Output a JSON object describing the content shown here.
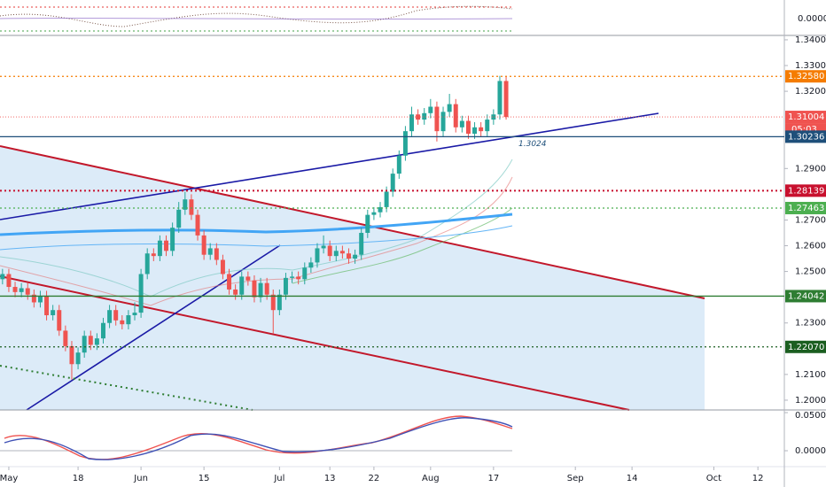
{
  "chart_data": {
    "type": "candlestick",
    "up_color": "#26a69a",
    "down_color": "#ef5350",
    "open": [
      1.247,
      1.249,
      1.244,
      1.242,
      1.2435,
      1.241,
      1.238,
      1.2405,
      1.233,
      1.235,
      1.227,
      1.221,
      1.214,
      1.2185,
      1.225,
      1.2215,
      1.224,
      1.23,
      1.235,
      1.231,
      1.2295,
      1.233,
      1.234,
      1.249,
      1.257,
      1.256,
      1.262,
      1.258,
      1.267,
      1.274,
      1.278,
      1.272,
      1.264,
      1.2565,
      1.259,
      1.2545,
      1.249,
      1.243,
      1.241,
      1.248,
      1.2465,
      1.24,
      1.2455,
      1.241,
      1.235,
      1.241,
      1.2475,
      1.248,
      1.247,
      1.2515,
      1.2535,
      1.259,
      1.26,
      1.256,
      1.258,
      1.257,
      1.255,
      1.2565,
      1.265,
      1.272,
      1.273,
      1.275,
      1.281,
      1.288,
      1.295,
      1.3045,
      1.311,
      1.309,
      1.3115,
      1.314,
      1.3045,
      1.312,
      1.315,
      1.306,
      1.3085,
      1.3035,
      1.306,
      1.3045,
      1.309,
      1.311,
      1.324
    ],
    "high": [
      1.251,
      1.251,
      1.246,
      1.2455,
      1.2455,
      1.243,
      1.2425,
      1.2425,
      1.237,
      1.237,
      1.229,
      1.223,
      1.2205,
      1.227,
      1.227,
      1.226,
      1.232,
      1.237,
      1.237,
      1.233,
      1.235,
      1.238,
      1.251,
      1.259,
      1.259,
      1.264,
      1.264,
      1.269,
      1.277,
      1.281,
      1.28,
      1.274,
      1.266,
      1.261,
      1.261,
      1.2565,
      1.251,
      1.245,
      1.25,
      1.25,
      1.2485,
      1.2475,
      1.2475,
      1.243,
      1.243,
      1.2495,
      1.25,
      1.25,
      1.2535,
      1.2555,
      1.261,
      1.264,
      1.262,
      1.26,
      1.26,
      1.259,
      1.2585,
      1.267,
      1.274,
      1.275,
      1.277,
      1.283,
      1.29,
      1.297,
      1.3065,
      1.314,
      1.313,
      1.3135,
      1.317,
      1.316,
      1.314,
      1.319,
      1.317,
      1.3105,
      1.3105,
      1.308,
      1.308,
      1.311,
      1.313,
      1.326,
      1.3258
    ],
    "low": [
      1.245,
      1.242,
      1.24,
      1.24,
      1.239,
      1.236,
      1.236,
      1.231,
      1.231,
      1.225,
      1.219,
      1.208,
      1.212,
      1.2165,
      1.2195,
      1.2195,
      1.222,
      1.228,
      1.229,
      1.2275,
      1.2275,
      1.231,
      1.232,
      1.247,
      1.254,
      1.254,
      1.256,
      1.256,
      1.265,
      1.272,
      1.27,
      1.262,
      1.2545,
      1.2545,
      1.2525,
      1.247,
      1.241,
      1.239,
      1.239,
      1.2445,
      1.238,
      1.238,
      1.239,
      1.226,
      1.233,
      1.239,
      1.2455,
      1.245,
      1.245,
      1.2495,
      1.2515,
      1.257,
      1.254,
      1.254,
      1.255,
      1.253,
      1.253,
      1.2545,
      1.263,
      1.27,
      1.271,
      1.273,
      1.279,
      1.286,
      1.293,
      1.3025,
      1.307,
      1.307,
      1.3095,
      1.3005,
      1.3025,
      1.31,
      1.304,
      1.304,
      1.3015,
      1.3015,
      1.3025,
      1.3025,
      1.307,
      1.309,
      1.309
    ],
    "close": [
      1.249,
      1.244,
      1.242,
      1.2435,
      1.241,
      1.238,
      1.2405,
      1.233,
      1.235,
      1.227,
      1.221,
      1.214,
      1.2185,
      1.225,
      1.2215,
      1.224,
      1.23,
      1.235,
      1.231,
      1.2295,
      1.233,
      1.234,
      1.249,
      1.257,
      1.256,
      1.262,
      1.258,
      1.267,
      1.274,
      1.278,
      1.272,
      1.264,
      1.2565,
      1.259,
      1.2545,
      1.249,
      1.243,
      1.241,
      1.248,
      1.2465,
      1.24,
      1.2455,
      1.241,
      1.235,
      1.241,
      1.2475,
      1.248,
      1.247,
      1.2515,
      1.2535,
      1.259,
      1.26,
      1.256,
      1.258,
      1.257,
      1.255,
      1.2565,
      1.265,
      1.272,
      1.273,
      1.275,
      1.281,
      1.288,
      1.295,
      1.3045,
      1.311,
      1.309,
      1.3115,
      1.314,
      1.3045,
      1.312,
      1.315,
      1.306,
      1.3085,
      1.3035,
      1.306,
      1.3045,
      1.309,
      1.311,
      1.324,
      1.31
    ],
    "xlim": [
      -0.4,
      124.2
    ],
    "xticks": [
      {
        "value": 1,
        "label": "May"
      },
      {
        "value": 12,
        "label": "18"
      },
      {
        "value": 22,
        "label": "Jun"
      },
      {
        "value": 32,
        "label": "15"
      },
      {
        "value": 44,
        "label": "Jul"
      },
      {
        "value": 52,
        "label": "13"
      },
      {
        "value": 59,
        "label": "22"
      },
      {
        "value": 68,
        "label": "Aug"
      },
      {
        "value": 78,
        "label": "17"
      },
      {
        "value": 91,
        "label": "Sep"
      },
      {
        "value": 100,
        "label": "14"
      },
      {
        "value": 113,
        "label": "Oct"
      },
      {
        "value": 120,
        "label": "12"
      }
    ],
    "ylim": [
      1.1962,
      1.3417
    ],
    "yticks": [
      {
        "value": 1.34,
        "label": "1.34000"
      },
      {
        "value": 1.33,
        "label": "1.33000"
      },
      {
        "value": 1.32,
        "label": "1.32000"
      },
      {
        "value": 1.29,
        "label": "1.29000"
      },
      {
        "value": 1.27,
        "label": "1.27000"
      },
      {
        "value": 1.26,
        "label": "1.26000"
      },
      {
        "value": 1.25,
        "label": "1.25000"
      },
      {
        "value": 1.23,
        "label": "1.23000"
      },
      {
        "value": 1.21,
        "label": "1.21000"
      },
      {
        "value": 1.2,
        "label": "1.20000"
      }
    ],
    "levels": [
      {
        "value": 1.3258,
        "label": "1.32580",
        "color": "#f57c00",
        "style": "dotted"
      },
      {
        "value": 1.31004,
        "label": "1.31004",
        "color": "#ef5350",
        "style": "thin"
      },
      {
        "value": 1.30236,
        "label": "1.30236",
        "color": "#1e4f7a",
        "style": "solid"
      },
      {
        "value": 1.28139,
        "label": "1.28139",
        "color": "#c8102e",
        "style": "dotted"
      },
      {
        "value": 1.27463,
        "label": "1.27463",
        "color": "#4caf50",
        "style": "dotted"
      },
      {
        "value": 1.24042,
        "label": "1.24042",
        "color": "#2e7d32",
        "style": "solid"
      },
      {
        "value": 1.2207,
        "label": "1.22070",
        "color": "#1b5e20",
        "style": "dotted"
      }
    ],
    "countdown": "05:03",
    "annotation": "1.3024",
    "top_pane": {
      "yticks": [
        {
          "value": 0,
          "label": "0.0000"
        }
      ]
    },
    "bottom_pane": {
      "ylim": [
        -0.0209,
        0.0535
      ],
      "yticks": [
        {
          "value": 0.05,
          "label": "0.05000"
        },
        {
          "value": 0,
          "label": "0.0000"
        }
      ]
    }
  }
}
